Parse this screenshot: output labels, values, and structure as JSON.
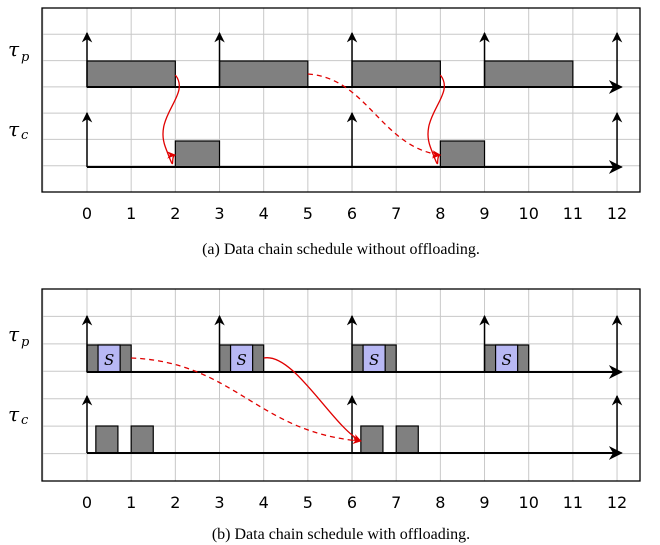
{
  "ticks": [
    "0",
    "1",
    "2",
    "3",
    "4",
    "5",
    "6",
    "7",
    "8",
    "9",
    "10",
    "11",
    "12"
  ],
  "task_labels": {
    "producer": "τ",
    "producer_sub": "p",
    "consumer": "τ",
    "consumer_sub": "c"
  },
  "offload_label": "S",
  "colors": {
    "job": "#808080",
    "offload": "#b8b8f4",
    "arrow": "#e00000",
    "grid": "#c8c8c8"
  },
  "panels": [
    {
      "caption": "(a) Data chain schedule without offloading.",
      "producer": {
        "releases": [
          0,
          3,
          6,
          9,
          12
        ],
        "jobs": [
          [
            0,
            2
          ],
          [
            3,
            5
          ],
          [
            6,
            8
          ],
          [
            9,
            11
          ]
        ],
        "offload": []
      },
      "consumer": {
        "releases": [
          0,
          6,
          12
        ],
        "jobs": [
          [
            2,
            3
          ],
          [
            8,
            9
          ]
        ]
      },
      "arrows": [
        {
          "style": "solid",
          "from": 2,
          "to": 2
        },
        {
          "style": "dashed",
          "from": 5,
          "to": 8
        },
        {
          "style": "solid",
          "from": 8,
          "to": 8
        }
      ]
    },
    {
      "caption": "(b) Data chain schedule with offloading.",
      "producer": {
        "releases": [
          0,
          3,
          6,
          9,
          12
        ],
        "jobs": [
          [
            0,
            1
          ],
          [
            3,
            4
          ],
          [
            6,
            7
          ],
          [
            9,
            10
          ]
        ],
        "offload": [
          [
            0.25,
            0.75
          ],
          [
            3.25,
            3.75
          ],
          [
            6.25,
            6.75
          ],
          [
            9.25,
            9.75
          ]
        ]
      },
      "consumer": {
        "releases": [
          0,
          6,
          12
        ],
        "jobs": [
          [
            0.2,
            0.7
          ],
          [
            1,
            1.5
          ],
          [
            6.2,
            6.7
          ],
          [
            7,
            7.5
          ]
        ]
      },
      "arrows": [
        {
          "style": "dashed",
          "from": 1,
          "to": 6.2
        },
        {
          "style": "solid",
          "from": 4,
          "to": 6.2
        }
      ]
    }
  ]
}
